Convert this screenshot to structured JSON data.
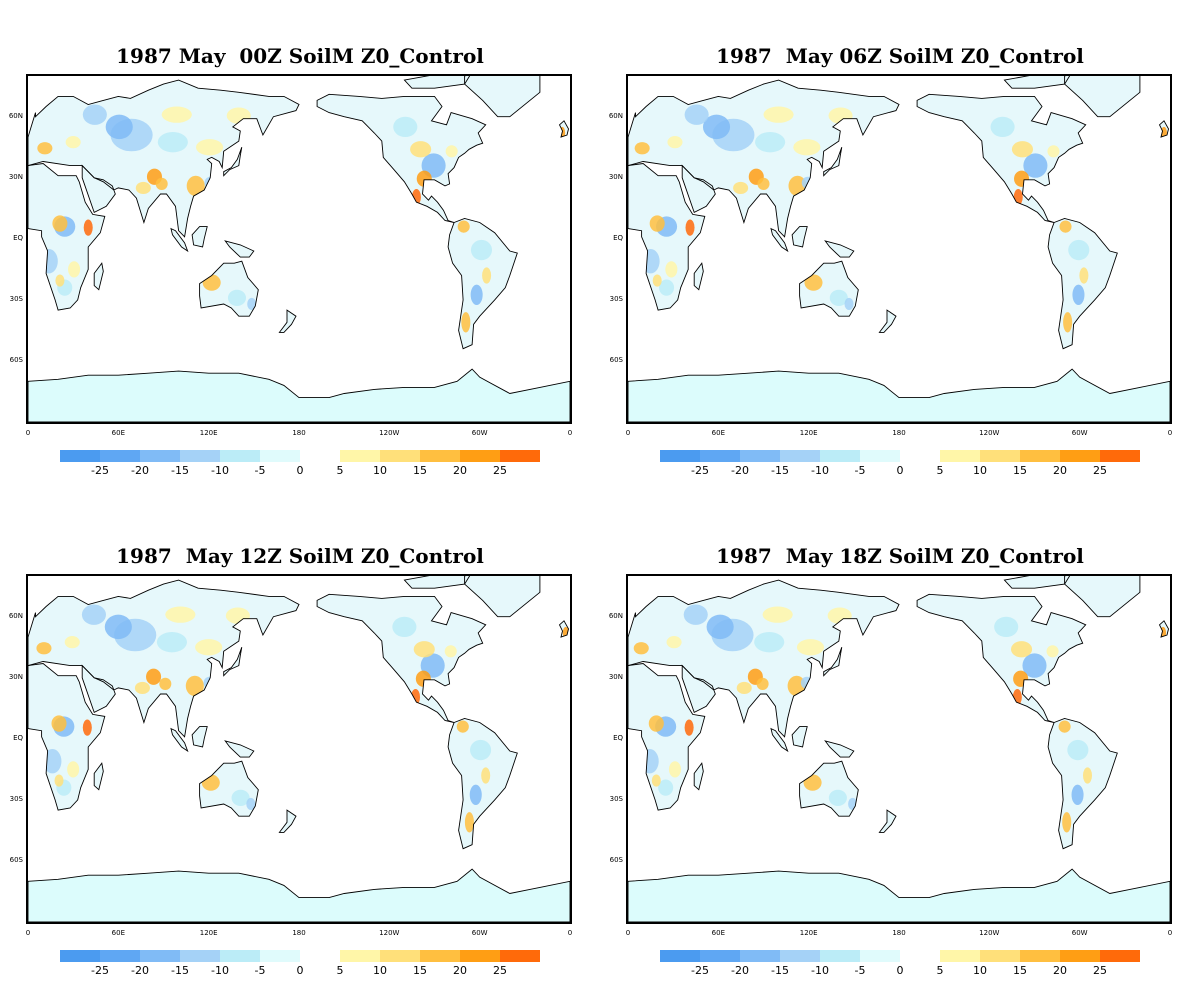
{
  "panels": [
    {
      "title": "1987 May  00Z SoilM Z0_Control"
    },
    {
      "title": "1987  May 06Z SoilM Z0_Control"
    },
    {
      "title": "1987  May 12Z SoilM Z0_Control"
    },
    {
      "title": "1987  May 18Z SoilM Z0_Control"
    }
  ],
  "lat_labels": [
    "60N",
    "30N",
    "EQ",
    "30S",
    "60S"
  ],
  "lon_labels": [
    "0",
    "60E",
    "120E",
    "180",
    "120W",
    "60W",
    "0"
  ],
  "colorbar": {
    "negative": {
      "labels": [
        "-25",
        "-20",
        "-15",
        "-10",
        "-5",
        "0"
      ],
      "colors": [
        "#4b9bf0",
        "#5fa7f3",
        "#80bbf6",
        "#a5d2f7",
        "#bbecf7",
        "#e0fbfc"
      ]
    },
    "positive": {
      "labels": [
        "5",
        "10",
        "15",
        "20",
        "25"
      ],
      "colors": [
        "#fff6a8",
        "#ffe07a",
        "#ffbf40",
        "#ff9e14",
        "#ff6a0a"
      ]
    }
  },
  "colors": {
    "land_base": "#e6f8fb",
    "ocean": "#ffffff",
    "antarctica": "#dcfcfc"
  }
}
